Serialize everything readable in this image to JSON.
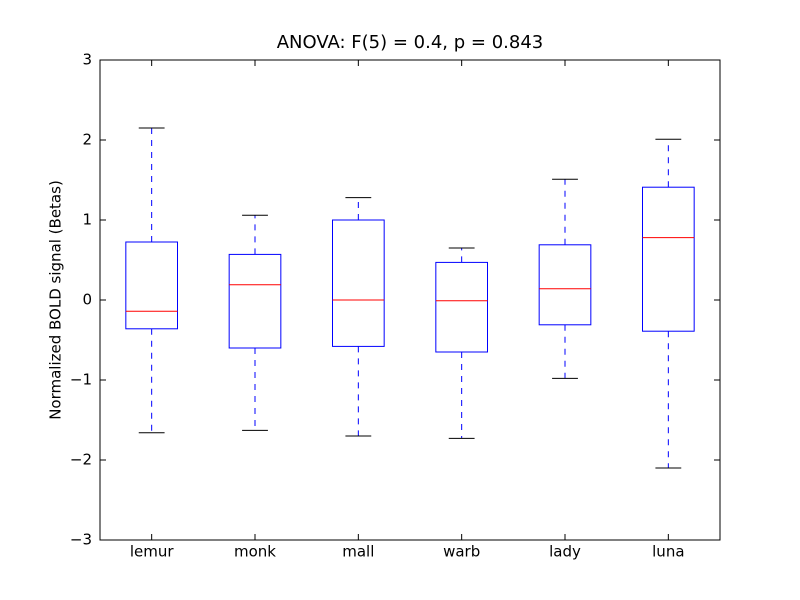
{
  "chart_data": {
    "type": "box",
    "title": "ANOVA: F(5) = 0.4, p = 0.843",
    "y_label": "Normalized BOLD signal (Betas)",
    "categories": [
      "lemur",
      "monk",
      "mall",
      "warb",
      "lady",
      "luna"
    ],
    "boxes": [
      {
        "whislo": -1.66,
        "q1": -0.36,
        "med": -0.14,
        "q3": 0.725,
        "whishi": 2.15
      },
      {
        "whislo": -1.63,
        "q1": -0.6,
        "med": 0.19,
        "q3": 0.57,
        "whishi": 1.06
      },
      {
        "whislo": -1.7,
        "q1": -0.58,
        "med": 0,
        "q3": 1.0,
        "whishi": 1.28
      },
      {
        "whislo": -1.73,
        "q1": -0.65,
        "med": -0.01,
        "q3": 0.47,
        "whishi": 0.65
      },
      {
        "whislo": -0.98,
        "q1": -0.31,
        "med": 0.14,
        "q3": 0.69,
        "whishi": 1.51
      },
      {
        "whislo": -2.1,
        "q1": -0.39,
        "med": 0.78,
        "q3": 1.41,
        "whishi": 2.01
      }
    ],
    "box_color": "#0000ff",
    "median_color": "#ff0000",
    "cap_color": "#000000",
    "ylim": [
      -3,
      3
    ],
    "yticks": [
      {
        "value": -3,
        "label": "−3"
      },
      {
        "value": -2,
        "label": "−2"
      },
      {
        "value": -1,
        "label": "−1"
      },
      0,
      1,
      2,
      3
    ],
    "grid": false
  }
}
